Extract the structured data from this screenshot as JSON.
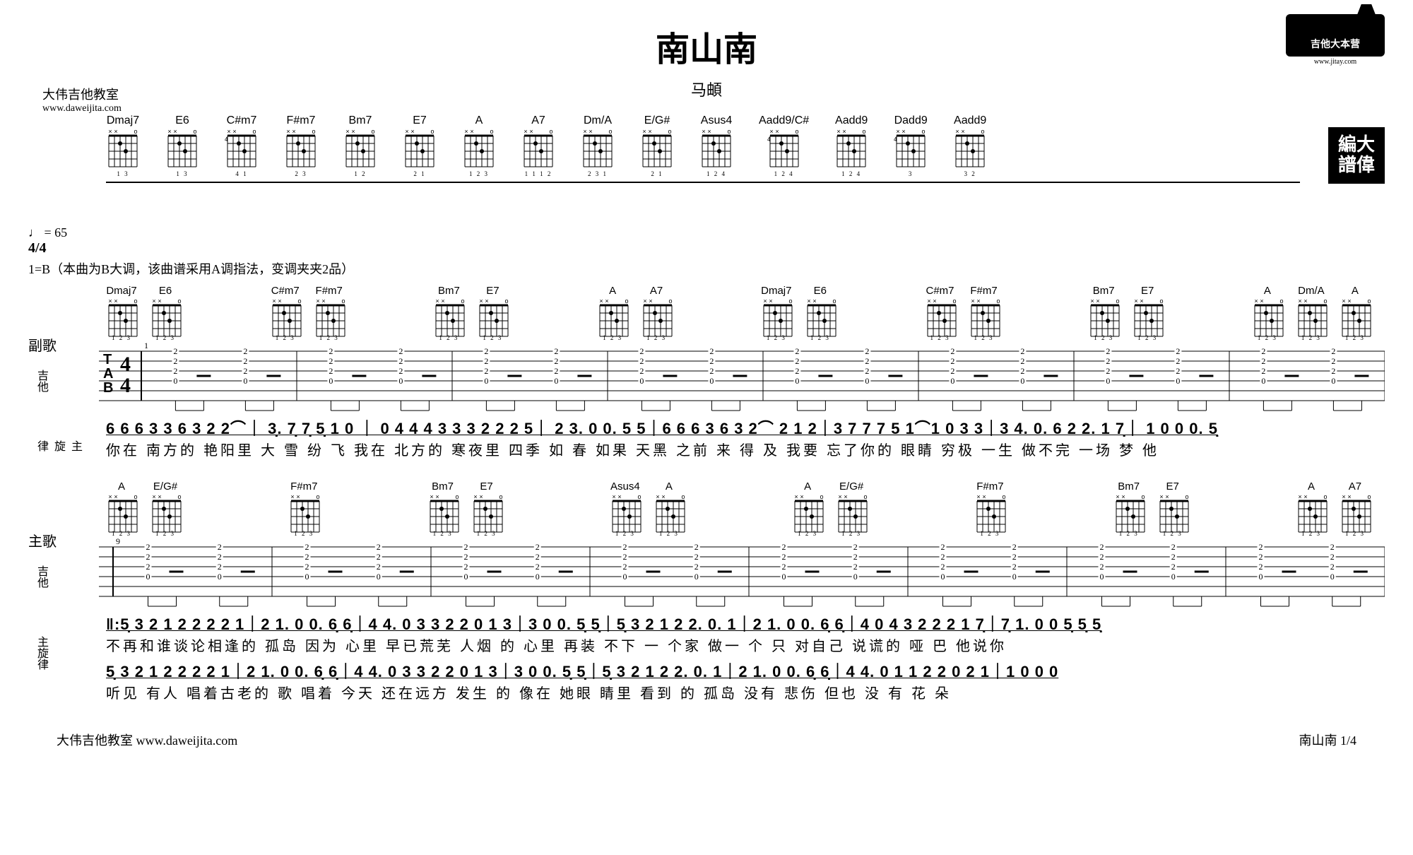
{
  "title": "南山南",
  "artist": "马頔",
  "credits": {
    "school": "大伟吉他教室",
    "url": "www.daweijita.com"
  },
  "logo": {
    "text": "吉他大本营",
    "url": "www.jitay.com"
  },
  "badge": {
    "line1a": "編",
    "line1b": "大",
    "line2a": "譜",
    "line2b": "偉"
  },
  "tempo": "♩ = 65",
  "time_sig": "4/4",
  "key_note": "1=B（本曲为B大调，该曲谱采用A调指法，变调夹夹2品）",
  "chord_reference": [
    {
      "name": "Dmaj7",
      "fret": "",
      "fing": "1 3"
    },
    {
      "name": "E6",
      "fret": "",
      "fing": "1 3"
    },
    {
      "name": "C#m7",
      "fret": "4",
      "fing": "4  1"
    },
    {
      "name": "F#m7",
      "fret": "",
      "fing": "2 3"
    },
    {
      "name": "Bm7",
      "fret": "",
      "fing": "1 2"
    },
    {
      "name": "E7",
      "fret": "",
      "fing": "2 1"
    },
    {
      "name": "A",
      "fret": "",
      "fing": "1 2 3"
    },
    {
      "name": "A7",
      "fret": "",
      "fing": "1 1 1 2"
    },
    {
      "name": "Dm/A",
      "fret": "",
      "fing": "2 3 1"
    },
    {
      "name": "E/G#",
      "fret": "",
      "fing": "2 1"
    },
    {
      "name": "Asus4",
      "fret": "",
      "fing": "1 2 4"
    },
    {
      "name": "Aadd9/C#",
      "fret": "4",
      "fing": "1 2 4"
    },
    {
      "name": "Aadd9",
      "fret": "",
      "fing": "1 2 4"
    },
    {
      "name": "Dadd9",
      "fret": "4",
      "fing": "3"
    },
    {
      "name": "Aadd9",
      "fret": "",
      "fing": "3 2"
    }
  ],
  "systems": [
    {
      "section_label": "副歌",
      "bar_start": "1",
      "chords_over": [
        [
          "Dmaj7",
          "E6"
        ],
        [
          "C#m7",
          "F#m7"
        ],
        [
          "Bm7",
          "E7"
        ],
        [
          "A",
          "A7"
        ],
        [
          "Dmaj7",
          "E6"
        ],
        [
          "C#m7",
          "F#m7"
        ],
        [
          "Bm7",
          "E7"
        ],
        [
          "A",
          "Dm/A",
          "A"
        ]
      ],
      "number_line": "6 6 6 3 3 6 3 2 2⌒｜ 3̣. 7̣ 7̣ 5̣ 1  0 ｜ 0 4 4 4 3 3 3 2 2  2 5｜ 2 3. 0  0.   5 5｜6 6 6 3 6 3 2⌒ 2 1 2｜3 7 7 7 5 1⌒1 0 3 3｜3 4. 0. 6 2 2. 1 7̣｜ 1  0    0  0. 5̣",
      "lyric_line": "你在 南方的 艳阳里  大 雪   纷 飞     我在 北方的 寒夜里 四季 如 春      如果 天黑 之前 来 得 及  我要  忘了你的 眼睛   穷极 一生  做不完 一场  梦         他"
    },
    {
      "section_label": "主歌",
      "bar_start": "9",
      "chords_over": [
        [
          "A",
          "E/G#"
        ],
        [
          "F#m7",
          ""
        ],
        [
          "Bm7",
          "E7"
        ],
        [
          "Asus4",
          "A"
        ],
        [
          "A",
          "E/G#"
        ],
        [
          "F#m7",
          ""
        ],
        [
          "Bm7",
          "E7"
        ],
        [
          "A",
          "A7"
        ]
      ],
      "number_lines": [
        "‖:5̣ 3 2 1 2 2 2 2 1｜2 1. 0   0.   6̣ 6̣｜4 4. 0 3 3 2 2 0 1 3｜3  0   0.    5̣ 5̣｜5̣ 3 2 1 2 2. 0. 1｜2 1. 0  0.   6̣ 6̣｜4    0 4 3 2 2 2 1 7̣｜7̣ 1. 0  0   5̣ 5̣ 5̣",
        " 5̣ 3 2 1 2 2 2 2 1｜2 1. 0   0.   6̣ 6̣｜4 4. 0 3 3 2 2 0 1 3｜3  0   0.    5̣ 5̣｜5̣ 3 2 1 2 2. 0. 1｜2 1. 0  0.   6̣ 6̣｜4 4. 0 1 1 2 2 0 2 1｜1  0   0   0"
      ],
      "lyric_lines": [
        "不再和谁谈论相逢的 孤岛      因为 心里   早已荒芜  人烟         的 心里 再装  不下   一 个家     做一 个   只 对自己 说谎的 哑 巴    他说你",
        "听见 有人 唱着古老的  歌      唱着 今天   还在远方  发生 的      像在 她眼 睛里 看到   的 孤岛     没有 悲伤     但也 没 有   花 朵"
      ]
    }
  ],
  "footer": {
    "left": "大伟吉他教室  www.daweijita.com",
    "right": "南山南  1/4"
  }
}
